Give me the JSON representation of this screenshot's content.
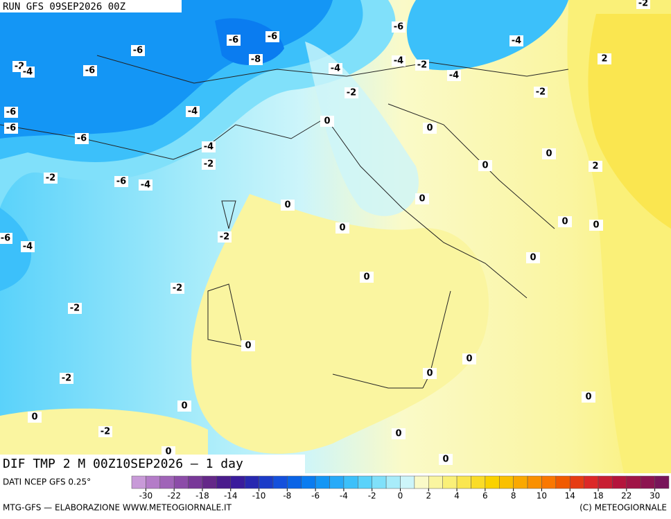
{
  "header": {
    "run": "RUN GFS 09SEP2026 00Z"
  },
  "map": {
    "contour_labels": [
      -2,
      -6,
      -4,
      -6,
      -6,
      -6,
      -8,
      -2,
      -4,
      -6,
      -4,
      -4,
      -2,
      -4,
      2,
      -2,
      -2,
      -6,
      -6,
      -4,
      0,
      0,
      -6,
      -4,
      0,
      -2,
      0,
      2,
      -2,
      -6,
      -4,
      0,
      0,
      0,
      0,
      0,
      -2,
      -6,
      -4,
      0,
      0,
      -2,
      -2,
      0,
      0,
      0,
      -2,
      0,
      0,
      0,
      -2,
      0,
      0,
      0
    ]
  },
  "footer": {
    "field": "DIF TMP 2 M 00Z10SEP2026 — 1 day",
    "source": "DATI NCEP GFS 0.25°",
    "credit": "MTG-GFS — ELABORAZIONE WWW.METEOGIORNALE.IT",
    "copyright": "(C) METEOGIORNALE"
  },
  "colorbar": {
    "labels": [
      -30,
      -22,
      -18,
      -14,
      -10,
      -8,
      -6,
      -4,
      -2,
      0,
      2,
      4,
      6,
      8,
      10,
      14,
      18,
      22,
      30
    ],
    "colors": [
      "#c89ad8",
      "#b47cc8",
      "#a064b8",
      "#8c4ca8",
      "#783898",
      "#642888",
      "#4a1c8c",
      "#3a1c9c",
      "#2828b0",
      "#1c3cc8",
      "#1450dc",
      "#0a64e6",
      "#0a7cf0",
      "#1496f5",
      "#28aaf8",
      "#3cc0fa",
      "#5ad2fa",
      "#80e0fa",
      "#a8ecfa",
      "#cdf5fa",
      "#fafac8",
      "#faf5a0",
      "#faf078",
      "#fae650",
      "#fadc28",
      "#fad200",
      "#fac000",
      "#faa800",
      "#fa9000",
      "#fa7800",
      "#f05a00",
      "#e63c14",
      "#dc2828",
      "#c81e32",
      "#b4143c",
      "#a01446",
      "#8c1450",
      "#78145a"
    ]
  }
}
